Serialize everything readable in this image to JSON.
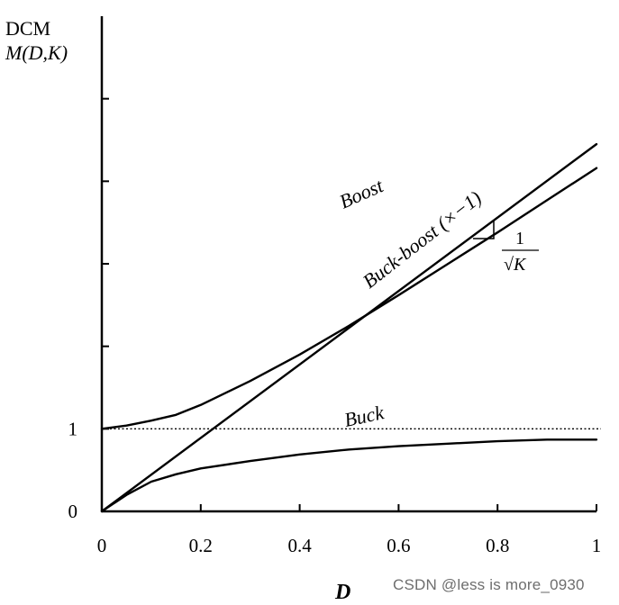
{
  "chart_data": {
    "type": "line",
    "ylabel_line1": "DCM",
    "ylabel_line2": "M(D,K)",
    "xlabel": "D",
    "xlim": [
      0,
      1
    ],
    "ylim": [
      0,
      6
    ],
    "x_ticks": [
      0,
      0.2,
      0.4,
      0.6,
      0.8,
      1
    ],
    "x_tick_labels": [
      "0",
      "0.2",
      "0.4",
      "0.6",
      "0.8",
      "1"
    ],
    "y_ticks": [
      0,
      1,
      2,
      3,
      4,
      5
    ],
    "y_tick_labels": [
      "0",
      "1",
      "",
      "",
      "",
      ""
    ],
    "reference_line": {
      "y": 1,
      "style": "dotted"
    },
    "series": [
      {
        "name": "Boost",
        "x": [
          0,
          0.05,
          0.1,
          0.15,
          0.2,
          0.3,
          0.4,
          0.5,
          0.6,
          0.7,
          0.8,
          0.9,
          1.0
        ],
        "y": [
          1.0,
          1.04,
          1.1,
          1.17,
          1.29,
          1.58,
          1.9,
          2.25,
          2.62,
          3.0,
          3.38,
          3.77,
          4.16
        ]
      },
      {
        "name": "Buck-boost (×−1)",
        "x": [
          0,
          1
        ],
        "y": [
          0,
          4.45
        ]
      },
      {
        "name": "Buck",
        "x": [
          0,
          0.05,
          0.1,
          0.15,
          0.2,
          0.3,
          0.4,
          0.5,
          0.6,
          0.7,
          0.8,
          0.9,
          1.0
        ],
        "y": [
          0,
          0.2,
          0.36,
          0.45,
          0.52,
          0.61,
          0.69,
          0.75,
          0.79,
          0.82,
          0.85,
          0.87,
          0.87
        ]
      }
    ],
    "annotation_slope": {
      "numerator": "1",
      "denominator": "√K"
    }
  },
  "watermark": "CSDN @less is more_0930"
}
